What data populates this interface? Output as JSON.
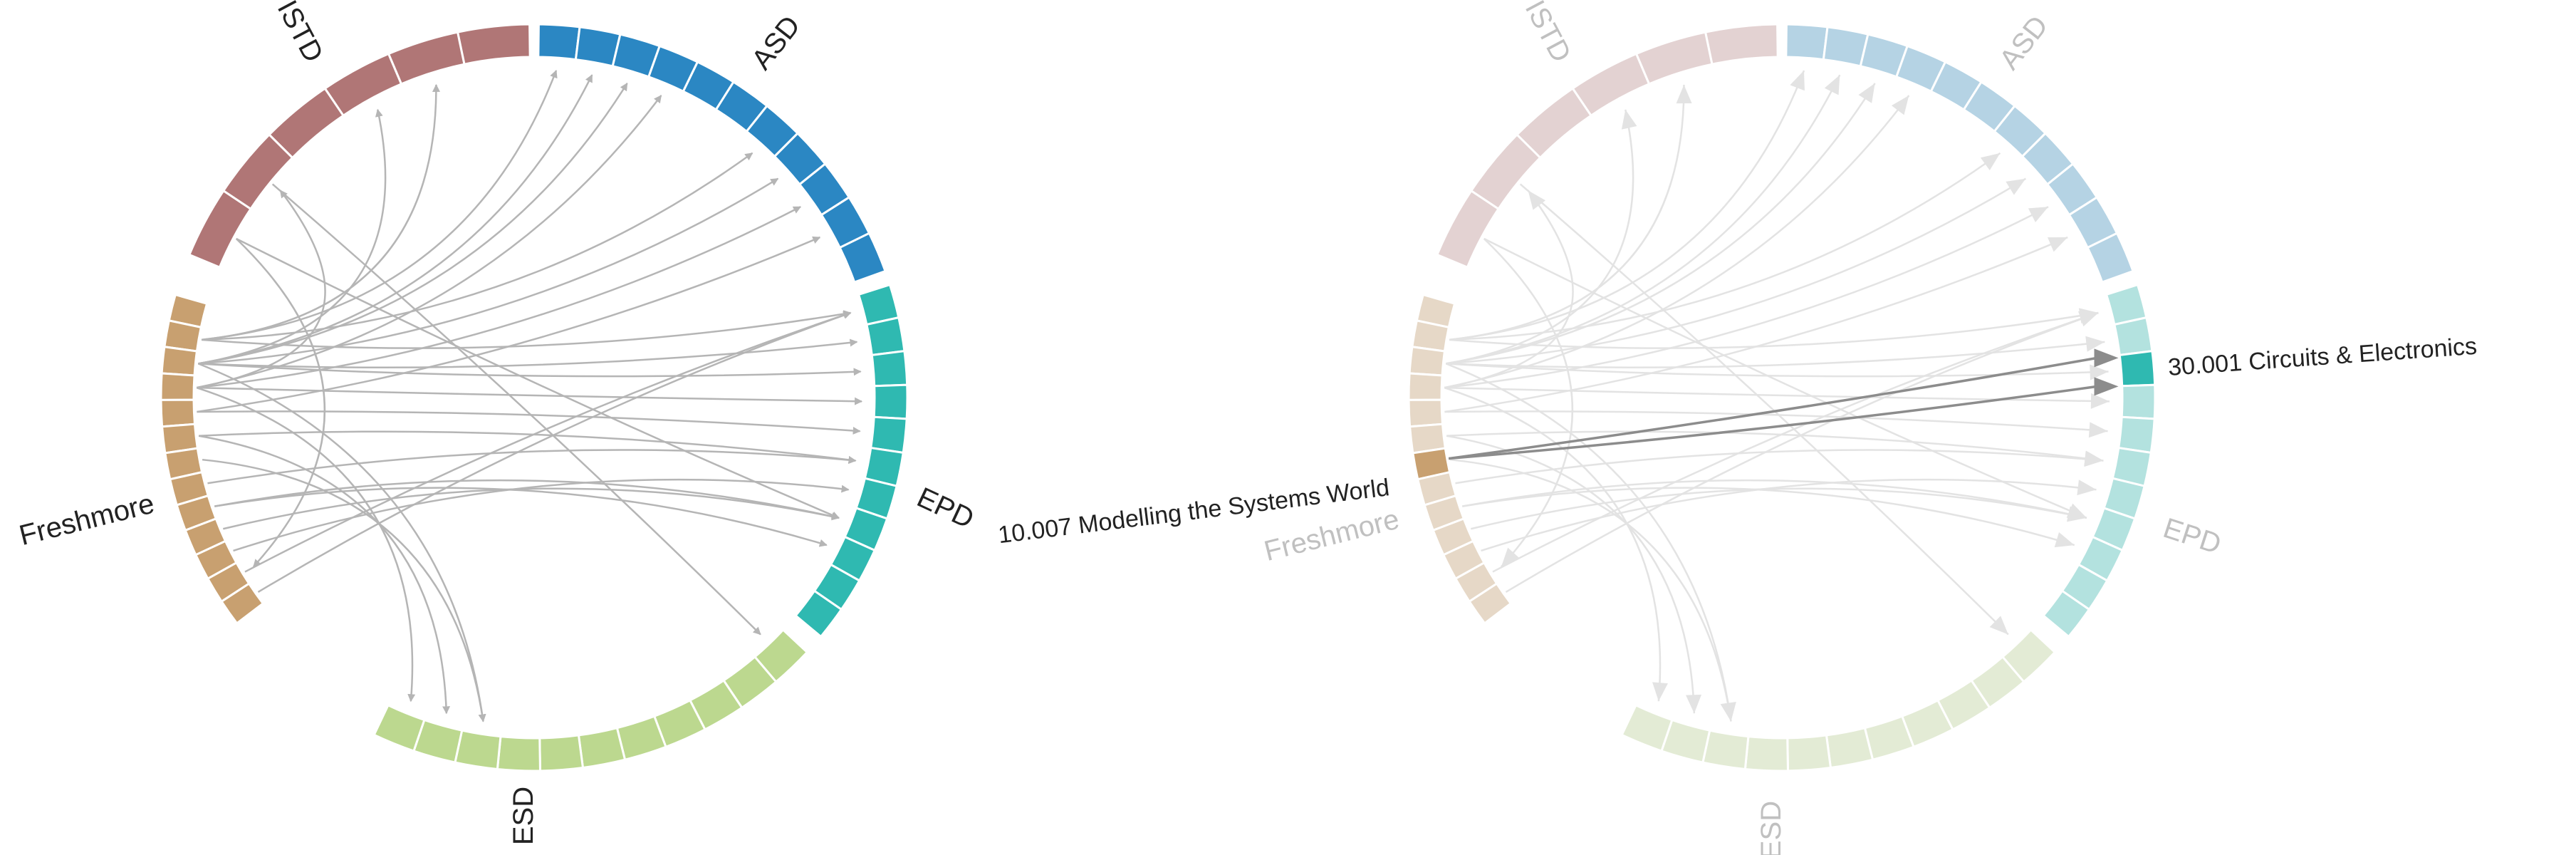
{
  "colors": {
    "arrow": "#b5b5b5",
    "arrow_faded": "#e3e3e3",
    "arrow_highlight": "#8c8c8c",
    "segment_divider": "#ffffff",
    "label": "#222222",
    "label_faded": "#c0c0c0"
  },
  "groups": [
    {
      "id": "istd",
      "name": "ISTD",
      "color": "#b07676",
      "color_faded": "#e3d2d2",
      "count": 6
    },
    {
      "id": "asd",
      "name": "ASD",
      "color": "#2b87c3",
      "color_faded": "#b5d3e4",
      "count": 11
    },
    {
      "id": "epd",
      "name": "EPD",
      "color": "#2fb9b1",
      "color_faded": "#b3e2df",
      "count": 11
    },
    {
      "id": "esd",
      "name": "ESD",
      "color": "#bcd88f",
      "color_faded": "#e3ebd5",
      "count": 11
    },
    {
      "id": "freshmore",
      "name": "Freshmore",
      "color": "#c8a070",
      "color_faded": "#e6d8c7",
      "count": 13
    }
  ],
  "views": [
    {
      "id": "overview",
      "highlight": null
    },
    {
      "id": "selected",
      "highlight": {
        "source_label": "10.007 Modelling the Systems World",
        "target_label": "30.001 Circuits & Electronics"
      }
    }
  ]
}
